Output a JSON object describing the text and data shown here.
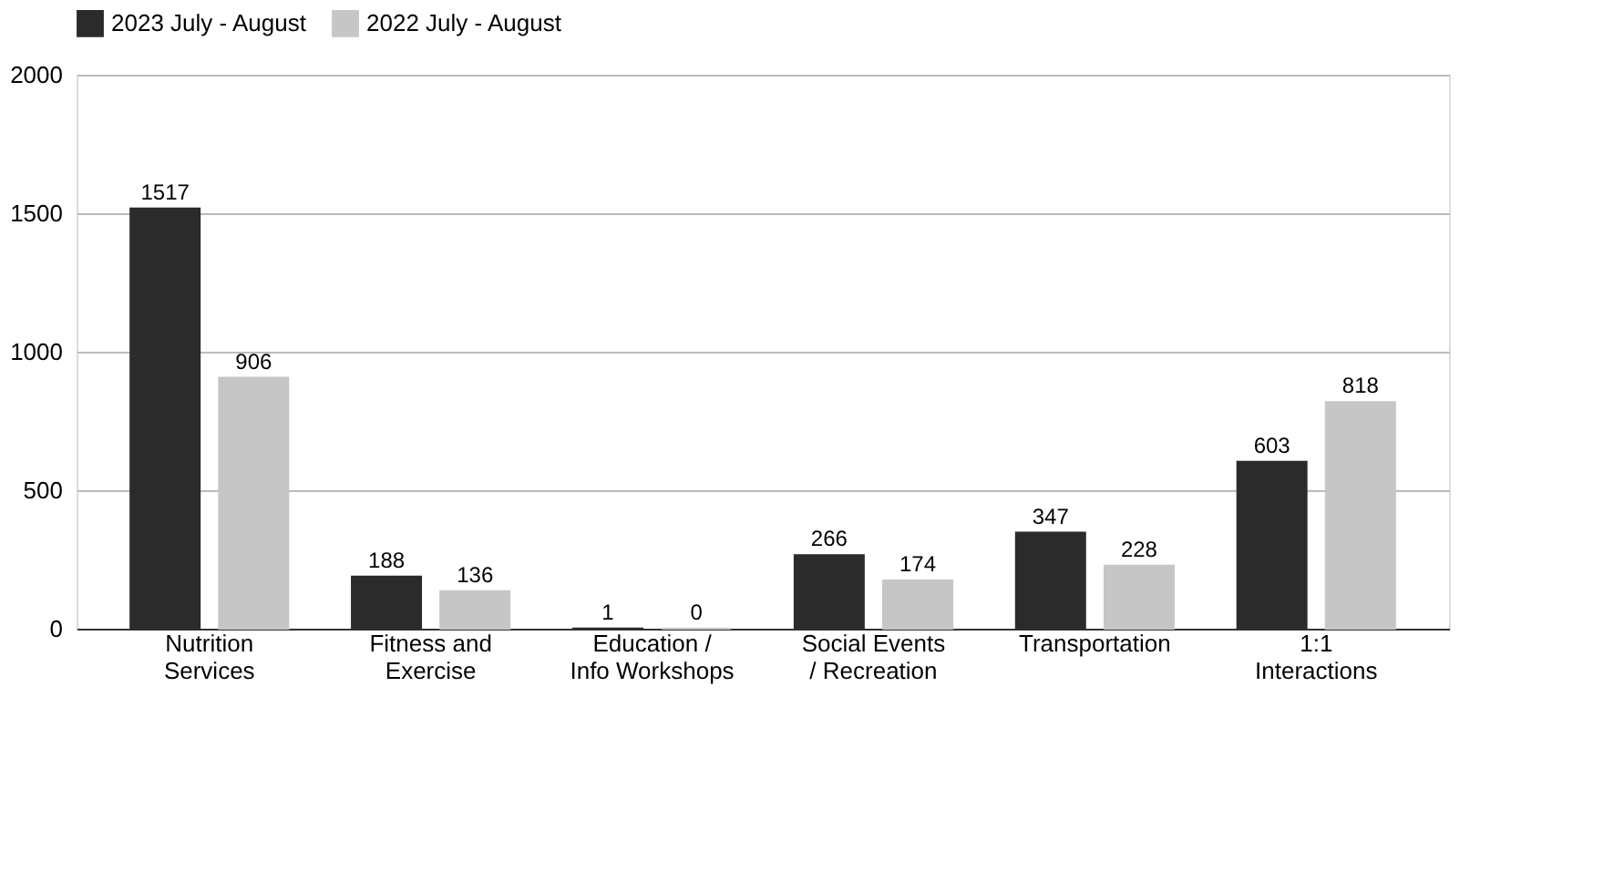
{
  "chart_data": {
    "type": "bar",
    "categories": [
      "Nutrition Services",
      "Fitness and Exercise",
      "Education / Info Workshops",
      "Social Events / Recreation",
      "Transportation",
      "1:1 Interactions"
    ],
    "series": [
      {
        "name": "2023 July - August",
        "color": "#2b2b2b",
        "values": [
          1517,
          188,
          1,
          266,
          347,
          603
        ]
      },
      {
        "name": "2022 July - August",
        "color": "#c6c6c6",
        "values": [
          906,
          136,
          0,
          174,
          228,
          818
        ]
      }
    ],
    "ylim": [
      0,
      2000
    ],
    "yticks": [
      0,
      500,
      1000,
      1500,
      2000
    ],
    "grid": "y",
    "legend": "top",
    "data_labels": true
  }
}
